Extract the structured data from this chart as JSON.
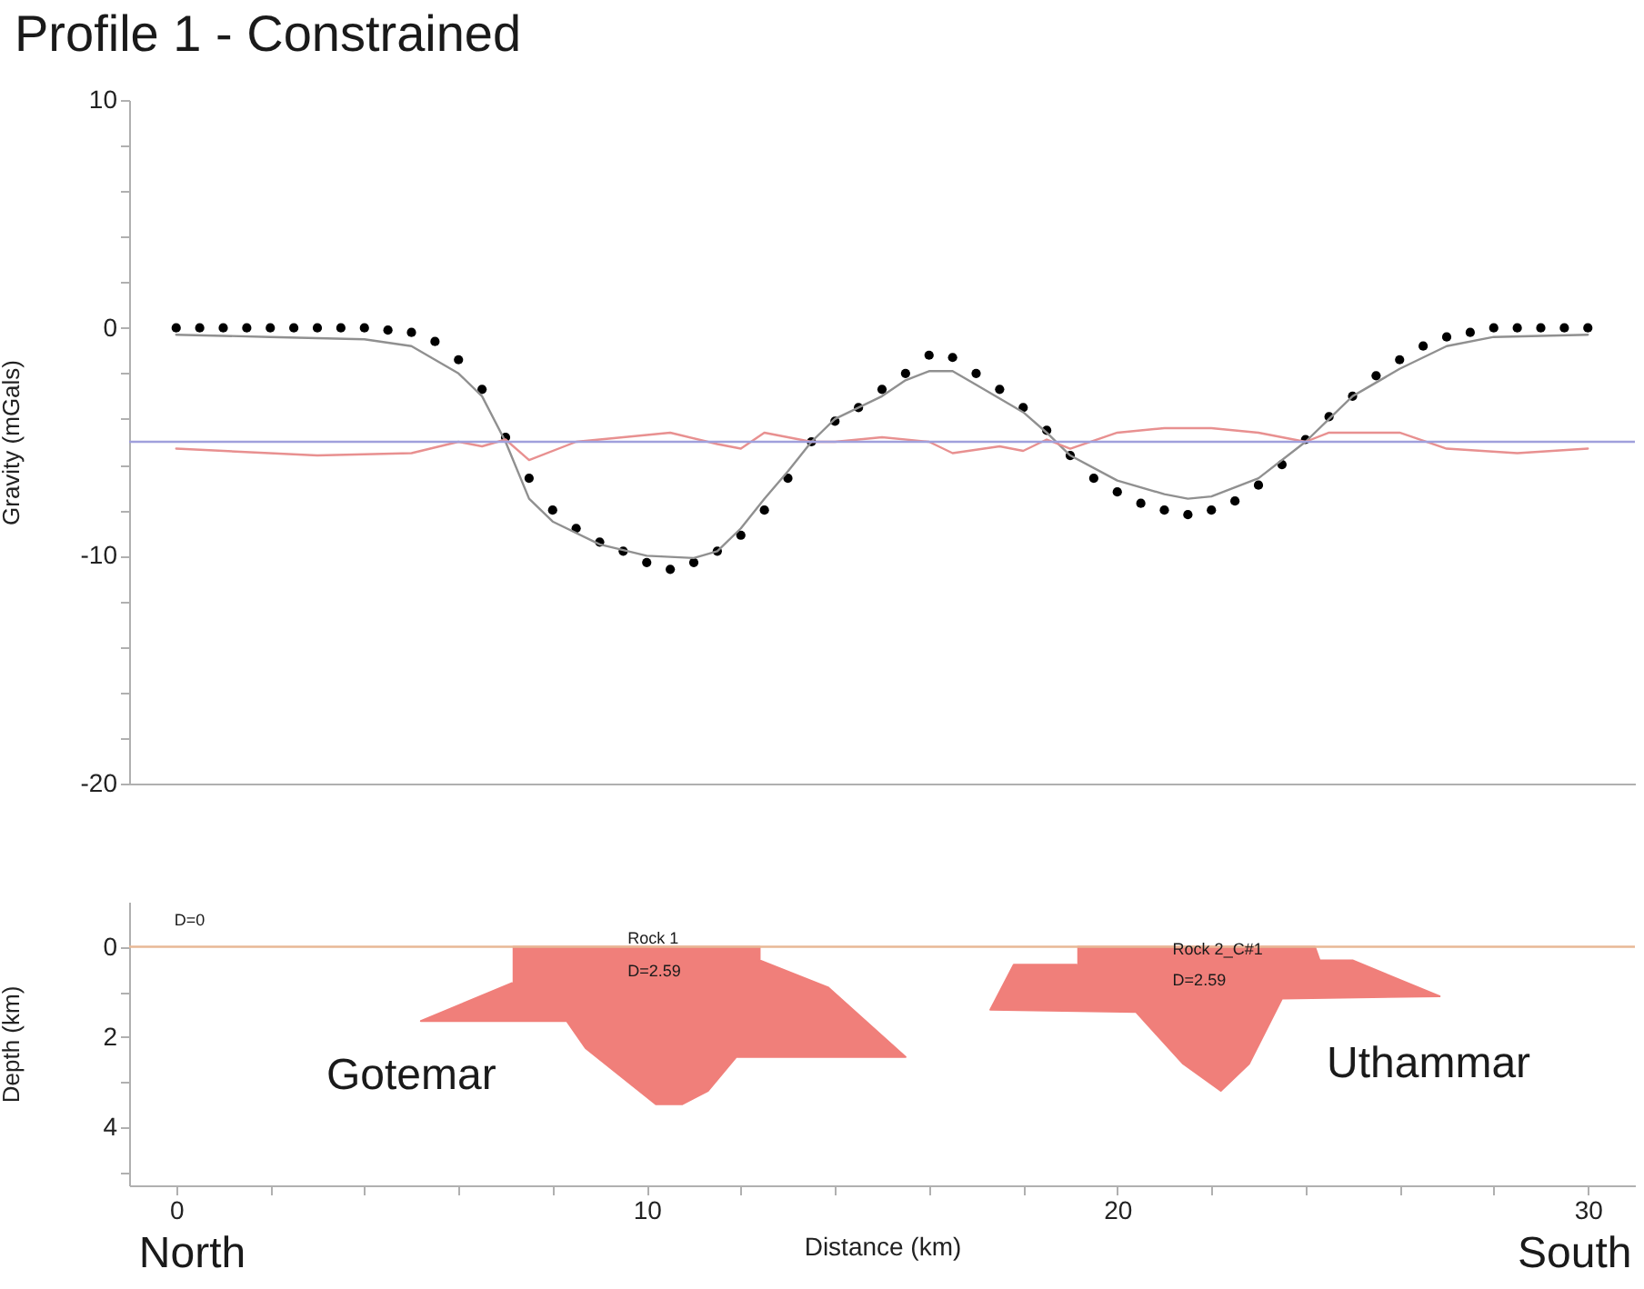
{
  "chart_data": [
    {
      "type": "line",
      "title": "Profile 1 - Constrained",
      "ylabel": "Gravity (mGals)",
      "tick_labels": "y",
      "xlim": [
        -1,
        31
      ],
      "ylim": [
        -20,
        10
      ],
      "yticks": [
        -20,
        {
          "value": -18,
          "label": null
        },
        {
          "value": -16,
          "label": null
        },
        {
          "value": -14,
          "label": null
        },
        {
          "value": -12,
          "label": null
        },
        -10,
        {
          "value": -8,
          "label": null
        },
        {
          "value": -6,
          "label": null
        },
        {
          "value": -4,
          "label": null
        },
        {
          "value": -2,
          "label": null
        },
        0,
        {
          "value": 2,
          "label": null
        },
        {
          "value": 4,
          "label": null
        },
        {
          "value": 6,
          "label": null
        },
        {
          "value": 8,
          "label": null
        },
        10
      ],
      "x": [
        0,
        0.5,
        1,
        1.5,
        2,
        2.5,
        3,
        3.5,
        4,
        4.5,
        5,
        5.5,
        6,
        6.5,
        7,
        7.5,
        8,
        8.5,
        9,
        9.5,
        10,
        10.5,
        11,
        11.5,
        12,
        12.5,
        13,
        13.5,
        14,
        14.5,
        15,
        15.5,
        16,
        16.5,
        17,
        17.5,
        18,
        18.5,
        19,
        19.5,
        20,
        20.5,
        21,
        21.5,
        22,
        22.5,
        23,
        23.5,
        24,
        24.5,
        25,
        25.5,
        26,
        26.5,
        27,
        27.5,
        28,
        28.5,
        29,
        29.5,
        30
      ],
      "series": [
        {
          "type": "scatter",
          "marker": "circle",
          "color": "#000000",
          "values": [
            0,
            0,
            0,
            0,
            0,
            0,
            0,
            0,
            0,
            -0.1,
            -0.2,
            -0.6,
            -1.4,
            -2.7,
            -4.8,
            -6.6,
            -8.0,
            -8.8,
            -9.4,
            -9.8,
            -10.3,
            -10.6,
            -10.3,
            -9.8,
            -9.1,
            -8.0,
            -6.6,
            -5.0,
            -4.1,
            -3.5,
            -2.7,
            -2.0,
            -1.2,
            -1.3,
            -2.0,
            -2.7,
            -3.5,
            -4.5,
            -5.6,
            -6.6,
            -7.2,
            -7.7,
            -8.0,
            -8.2,
            -8.0,
            -7.6,
            -6.9,
            -6.0,
            -4.9,
            -3.9,
            -3.0,
            -2.1,
            -1.4,
            -0.8,
            -0.4,
            -0.2,
            0,
            0,
            0,
            0,
            0
          ]
        },
        {
          "color": "#909090",
          "x": [
            0,
            2,
            4,
            5,
            6,
            6.5,
            7,
            7.5,
            8,
            9,
            10,
            11,
            11.5,
            12,
            12.5,
            13,
            13.5,
            14,
            15,
            15.5,
            16,
            16.5,
            17,
            18,
            18.5,
            19,
            20,
            21,
            21.5,
            22,
            23,
            24,
            24.5,
            25,
            26,
            27,
            28,
            30
          ],
          "values": [
            -0.3,
            -0.4,
            -0.5,
            -0.8,
            -2.0,
            -3.0,
            -5.0,
            -7.5,
            -8.5,
            -9.5,
            -10.0,
            -10.1,
            -9.8,
            -8.8,
            -7.5,
            -6.3,
            -5.0,
            -4.0,
            -3.0,
            -2.3,
            -1.9,
            -1.9,
            -2.5,
            -3.7,
            -4.6,
            -5.6,
            -6.7,
            -7.3,
            -7.5,
            -7.4,
            -6.6,
            -5.0,
            -4.0,
            -3.0,
            -1.8,
            -0.8,
            -0.4,
            -0.3
          ]
        },
        {
          "color": "#e89090",
          "x": [
            0,
            3,
            5,
            6,
            6.5,
            7,
            7.5,
            8.5,
            9.5,
            10.5,
            11.5,
            12,
            12.5,
            13.5,
            14,
            15,
            16,
            16.5,
            17.5,
            18,
            18.5,
            19,
            20,
            21,
            22,
            23,
            24,
            24.5,
            26,
            27,
            28.5,
            30
          ],
          "values": [
            -5.3,
            -5.6,
            -5.5,
            -5.0,
            -5.2,
            -4.9,
            -5.8,
            -5.0,
            -4.8,
            -4.6,
            -5.1,
            -5.3,
            -4.6,
            -5.0,
            -5.0,
            -4.8,
            -5.0,
            -5.5,
            -5.2,
            -5.4,
            -4.9,
            -5.3,
            -4.6,
            -4.4,
            -4.4,
            -4.6,
            -5.0,
            -4.6,
            -4.6,
            -5.3,
            -5.5,
            -5.3
          ]
        }
      ],
      "ref_lines": [
        {
          "axis": "y",
          "value": -5,
          "color": "#a0a0dc"
        }
      ]
    },
    {
      "type": "area",
      "xlabel": "Distance (km)",
      "ylabel": "Depth (km)",
      "xlim": [
        -1,
        31
      ],
      "ylim": [
        5.3,
        -1
      ],
      "xticks": [
        0,
        {
          "value": 2,
          "label": null
        },
        {
          "value": 4,
          "label": null
        },
        {
          "value": 6,
          "label": null
        },
        {
          "value": 8,
          "label": null
        },
        10,
        {
          "value": 12,
          "label": null
        },
        {
          "value": 14,
          "label": null
        },
        {
          "value": 16,
          "label": null
        },
        {
          "value": 18,
          "label": null
        },
        20,
        {
          "value": 22,
          "label": null
        },
        {
          "value": 24,
          "label": null
        },
        {
          "value": 26,
          "label": null
        },
        {
          "value": 28,
          "label": null
        },
        30
      ],
      "yticks": [
        0,
        {
          "value": 1,
          "label": null
        },
        2,
        {
          "value": 3,
          "label": null
        },
        4,
        {
          "value": 5,
          "label": null
        }
      ],
      "series": [
        {
          "name": "Gotemar",
          "color": "#f07f7a",
          "x": [
            7.15,
            12.4,
            12.4,
            13.85,
            15.5,
            11.9,
            11.3,
            10.75,
            10.2,
            8.7,
            8.3,
            5.2,
            7.15
          ],
          "values": [
            0,
            0,
            0.3,
            0.9,
            2.45,
            2.45,
            3.2,
            3.5,
            3.5,
            2.25,
            1.65,
            1.65,
            0.8
          ]
        },
        {
          "name": "Uthammar",
          "color": "#f07f7a",
          "x": [
            19.15,
            24.2,
            24.3,
            25.0,
            26.85,
            23.5,
            22.8,
            22.2,
            21.4,
            20.4,
            17.3,
            17.8,
            19.15
          ],
          "values": [
            0,
            0,
            0.3,
            0.3,
            1.1,
            1.15,
            2.6,
            3.2,
            2.6,
            1.45,
            1.4,
            0.4,
            0.4
          ]
        }
      ],
      "ref_lines": [
        {
          "axis": "y",
          "value": 0,
          "color": "#e8b896"
        }
      ],
      "annotations": [
        "D=0",
        "Rock 1",
        "D=2.59",
        "Rock 2_C#1",
        "D=2.59",
        "North",
        "South"
      ]
    }
  ]
}
